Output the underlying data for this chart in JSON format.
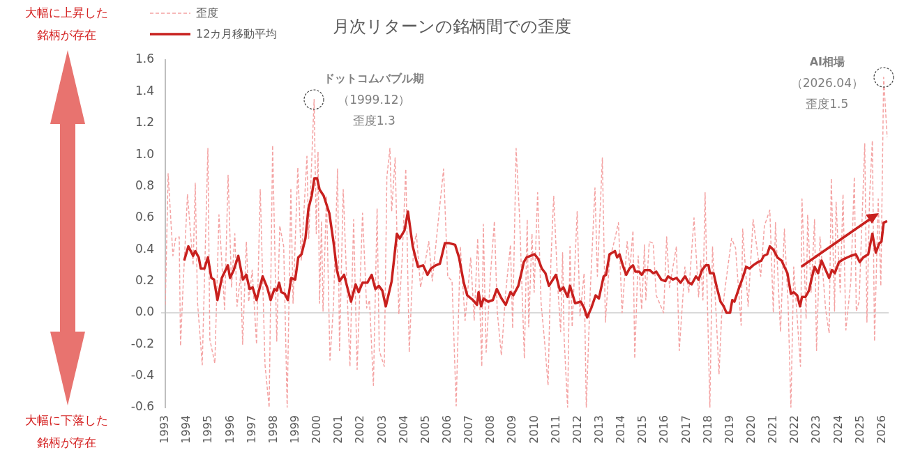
{
  "chart_data": {
    "type": "line",
    "title": "月次リターンの銘柄間での歪度",
    "xlim": [
      1993,
      2026.3
    ],
    "xticks": [
      1993,
      1994,
      1995,
      1996,
      1997,
      1998,
      1999,
      2000,
      2001,
      2002,
      2003,
      2004,
      2005,
      2006,
      2007,
      2008,
      2009,
      2010,
      2011,
      2012,
      2013,
      2014,
      2015,
      2016,
      2017,
      2018,
      2019,
      2020,
      2021,
      2022,
      2023,
      2024,
      2025,
      2026
    ],
    "ylim": [
      -0.6,
      1.6
    ],
    "yticks": [
      {
        "value": -0.6,
        "label": "-0.6"
      },
      {
        "value": -0.4,
        "label": "-0.4"
      },
      {
        "value": -0.2,
        "label": "-0.2"
      },
      {
        "value": 0,
        "label": "0.0"
      },
      0.2,
      0.4,
      0.6,
      0.8,
      {
        "value": 1,
        "label": "1.0"
      },
      1.2,
      1.4,
      1.6
    ],
    "legend": "top left",
    "marker": "none",
    "series": [
      {
        "name": "歪度",
        "color": "#f4a3a3",
        "line_style": "dashed",
        "x": [
          1993.0,
          1993.13,
          1993.35,
          1993.47,
          1993.64,
          1993.7,
          1993.8,
          1994.02,
          1994.28,
          1994.38,
          1994.48,
          1994.7,
          1994.96,
          1995.05,
          1995.28,
          1995.47,
          1995.73,
          1995.89,
          1996.05,
          1996.2,
          1996.3,
          1996.47,
          1996.56,
          1996.73,
          1996.84,
          1997.0,
          1997.2,
          1997.37,
          1997.59,
          1997.78,
          1997.94,
          1998.13,
          1998.27,
          1998.45,
          1998.61,
          1998.78,
          1998.88,
          1999.1,
          1999.26,
          1999.52,
          1999.6,
          1999.85,
          1999.95,
          2000.03,
          2000.1,
          2000.19,
          2000.26,
          2000.42,
          2000.58,
          2000.74,
          2000.93,
          2001.02,
          2001.19,
          2001.5,
          2001.67,
          2001.83,
          2002.08,
          2002.27,
          2002.4,
          2002.58,
          2002.75,
          2002.85,
          2003.08,
          2003.2,
          2003.34,
          2003.42,
          2003.58,
          2003.75,
          2003.9,
          2004.07,
          2004.23,
          2004.43,
          2004.56,
          2004.75,
          2005.13,
          2005.29,
          2005.52,
          2005.81,
          2006.0,
          2006.2,
          2006.39,
          2006.58,
          2006.8,
          2007.06,
          2007.22,
          2007.38,
          2007.57,
          2007.64,
          2007.77,
          2007.96,
          2008.15,
          2008.28,
          2008.47,
          2008.67,
          2008.89,
          2008.99,
          2009.15,
          2009.31,
          2009.53,
          2009.66,
          2009.73,
          2009.88,
          2009.98,
          2010.14,
          2010.3,
          2010.46,
          2010.62,
          2010.75,
          2010.88,
          2011.07,
          2011.2,
          2011.29,
          2011.36,
          2011.52,
          2011.63,
          2011.73,
          2011.96,
          2012.09,
          2012.28,
          2012.38,
          2012.57,
          2012.78,
          2012.89,
          2013.12,
          2013.26,
          2013.45,
          2013.7,
          2013.86,
          2014.03,
          2014.26,
          2014.39,
          2014.53,
          2014.61,
          2014.77,
          2014.93,
          2015.06,
          2015.12,
          2015.28,
          2015.46,
          2015.6,
          2015.94,
          2016.08,
          2016.21,
          2016.53,
          2016.66,
          2016.92,
          2017.1,
          2017.34,
          2017.55,
          2017.65,
          2017.75,
          2017.85,
          2017.94,
          2018.07,
          2018.19,
          2018.35,
          2018.49,
          2018.61,
          2018.83,
          2019.07,
          2019.25,
          2019.51,
          2019.58,
          2019.83,
          2020.06,
          2020.41,
          2020.58,
          2020.83,
          2020.99,
          2021.09,
          2021.32,
          2021.5,
          2021.67,
          2021.8,
          2021.93,
          2022.24,
          2022.31,
          2022.5,
          2022.57,
          2022.73,
          2022.89,
          2022.98,
          2023.14,
          2023.4,
          2023.56,
          2023.66,
          2023.81,
          2023.88,
          2024.07,
          2024.2,
          2024.33,
          2024.56,
          2024.72,
          2024.81,
          2024.94,
          2025.2,
          2025.3,
          2025.42,
          2025.55,
          2025.65,
          2025.82,
          2025.94,
          2026.07,
          2026.23
        ],
        "values": [
          0.05,
          0.88,
          0.36,
          0.47,
          0.48,
          -0.21,
          0.11,
          0.75,
          0.3,
          0.82,
          0.07,
          -0.33,
          1.04,
          -0.17,
          -0.32,
          0.62,
          0.02,
          0.87,
          0.16,
          0.5,
          0.04,
          0.24,
          -0.2,
          0.45,
          0.07,
          0.27,
          -0.2,
          0.78,
          -0.33,
          -0.6,
          1.06,
          -0.18,
          0.55,
          0.42,
          -0.6,
          0.79,
          0.06,
          0.92,
          0.33,
          0.99,
          0.47,
          1.35,
          0.5,
          1.02,
          0.06,
          0.58,
          0.01,
          0.74,
          -0.3,
          0.04,
          0.91,
          -0.24,
          0.78,
          -0.34,
          0.59,
          -0.36,
          0.63,
          0.03,
          0.08,
          -0.46,
          0.66,
          -0.24,
          -0.34,
          0.86,
          1.04,
          0.64,
          0.98,
          -0.01,
          0.33,
          0.91,
          -0.25,
          0.42,
          0.5,
          0.16,
          0.45,
          0.2,
          0.52,
          0.91,
          0.23,
          0.2,
          -0.59,
          0.42,
          -0.05,
          0.35,
          -0.05,
          0.47,
          -0.34,
          0.56,
          -0.25,
          0.22,
          0.58,
          0.01,
          -0.27,
          0.13,
          0.43,
          -0.1,
          1.04,
          0.6,
          -0.29,
          0.59,
          -0.09,
          0.5,
          0.13,
          0.76,
          0.06,
          -0.18,
          -0.46,
          0.32,
          0.74,
          0.16,
          -0.12,
          0.38,
          -0.16,
          -0.6,
          0.42,
          -0.09,
          0.64,
          -0.02,
          0.25,
          -0.6,
          0.16,
          0.79,
          0.23,
          0.98,
          -0.06,
          0.33,
          0.47,
          0.57,
          0.0,
          0.45,
          0.28,
          0.52,
          -0.29,
          0.36,
          0.02,
          0.43,
          0.08,
          0.45,
          0.44,
          0.11,
          0.0,
          0.48,
          0.16,
          0.42,
          -0.24,
          0.29,
          0.13,
          0.6,
          0.1,
          0.33,
          0.08,
          0.76,
          0.16,
          -0.6,
          0.42,
          0.01,
          -0.39,
          -0.02,
          0.22,
          0.47,
          0.41,
          -0.08,
          0.53,
          0.04,
          0.59,
          0.23,
          0.55,
          0.65,
          0.0,
          0.57,
          -0.12,
          0.53,
          0.06,
          -0.6,
          0.29,
          -0.34,
          0.72,
          -0.04,
          0.62,
          0.13,
          0.59,
          -0.24,
          0.48,
          0.02,
          -0.13,
          0.85,
          0.01,
          0.7,
          0.13,
          0.75,
          -0.11,
          0.2,
          0.86,
          0.01,
          0.07,
          1.07,
          -0.06,
          0.73,
          1.09,
          -0.18,
          0.72,
          0.17,
          1.49,
          1.11
        ]
      },
      {
        "name": "12カ月移動平均",
        "color": "#c8201e",
        "line_style": "solid",
        "x": [
          1993.87,
          1994.06,
          1994.28,
          1994.38,
          1994.54,
          1994.63,
          1994.8,
          1994.96,
          1995.12,
          1995.24,
          1995.4,
          1995.6,
          1995.88,
          1995.98,
          1996.15,
          1996.36,
          1996.57,
          1996.73,
          1996.88,
          1997.02,
          1997.2,
          1997.48,
          1997.69,
          1997.85,
          1998.02,
          1998.13,
          1998.24,
          1998.34,
          1998.5,
          1998.64,
          1998.8,
          1998.98,
          1999.12,
          1999.27,
          1999.45,
          1999.59,
          1999.74,
          1999.86,
          1999.99,
          2000.1,
          2000.29,
          2000.55,
          2000.74,
          2000.9,
          2001.02,
          2001.23,
          2001.38,
          2001.55,
          2001.76,
          2001.9,
          2002.08,
          2002.3,
          2002.5,
          2002.67,
          2002.83,
          2002.99,
          2003.15,
          2003.42,
          2003.66,
          2003.79,
          2004.01,
          2004.17,
          2004.39,
          2004.63,
          2004.87,
          2005.07,
          2005.23,
          2005.45,
          2005.64,
          2005.87,
          2006.08,
          2006.34,
          2006.52,
          2006.74,
          2006.9,
          2007.16,
          2007.35,
          2007.42,
          2007.54,
          2007.65,
          2007.86,
          2008.08,
          2008.26,
          2008.48,
          2008.67,
          2008.89,
          2009.02,
          2009.25,
          2009.44,
          2009.5,
          2009.63,
          2010.0,
          2010.17,
          2010.33,
          2010.5,
          2010.66,
          2010.98,
          2011.17,
          2011.33,
          2011.52,
          2011.63,
          2011.87,
          2012.13,
          2012.28,
          2012.42,
          2012.61,
          2012.81,
          2012.96,
          2013.18,
          2013.29,
          2013.45,
          2013.7,
          2013.8,
          2013.91,
          2014.06,
          2014.22,
          2014.37,
          2014.53,
          2014.64,
          2014.82,
          2014.93,
          2015.07,
          2015.3,
          2015.46,
          2015.6,
          2015.83,
          2016.02,
          2016.14,
          2016.37,
          2016.53,
          2016.72,
          2016.92,
          2017.1,
          2017.23,
          2017.43,
          2017.55,
          2017.71,
          2017.88,
          2018.01,
          2018.07,
          2018.24,
          2018.39,
          2018.56,
          2018.71,
          2018.83,
          2019.0,
          2019.1,
          2019.2,
          2019.42,
          2019.58,
          2019.74,
          2019.9,
          2020.06,
          2020.28,
          2020.44,
          2020.55,
          2020.71,
          2020.83,
          2020.99,
          2021.18,
          2021.37,
          2021.47,
          2021.64,
          2021.8,
          2021.93,
          2022.09,
          2022.22,
          2022.31,
          2022.47,
          2022.63,
          2022.76,
          2022.89,
          2023.05,
          2023.21,
          2023.37,
          2023.56,
          2023.69,
          2023.82,
          2024.01,
          2024.24,
          2024.4,
          2024.56,
          2024.79,
          2024.97,
          2025.13,
          2025.36,
          2025.55,
          2025.71,
          2025.87,
          2025.97,
          2026.07,
          2026.23
        ],
        "values": [
          0.33,
          0.42,
          0.36,
          0.39,
          0.35,
          0.28,
          0.28,
          0.35,
          0.22,
          0.21,
          0.08,
          0.22,
          0.3,
          0.22,
          0.27,
          0.36,
          0.21,
          0.24,
          0.15,
          0.16,
          0.08,
          0.23,
          0.16,
          0.08,
          0.15,
          0.14,
          0.19,
          0.13,
          0.12,
          0.08,
          0.22,
          0.21,
          0.35,
          0.37,
          0.47,
          0.66,
          0.74,
          0.85,
          0.85,
          0.78,
          0.74,
          0.63,
          0.45,
          0.27,
          0.2,
          0.24,
          0.16,
          0.07,
          0.18,
          0.13,
          0.19,
          0.19,
          0.24,
          0.15,
          0.17,
          0.14,
          0.04,
          0.2,
          0.5,
          0.47,
          0.52,
          0.64,
          0.42,
          0.29,
          0.3,
          0.24,
          0.28,
          0.3,
          0.31,
          0.44,
          0.44,
          0.43,
          0.35,
          0.19,
          0.11,
          0.08,
          0.05,
          0.13,
          0.04,
          0.09,
          0.07,
          0.08,
          0.15,
          0.09,
          0.05,
          0.13,
          0.11,
          0.17,
          0.28,
          0.32,
          0.35,
          0.37,
          0.34,
          0.28,
          0.25,
          0.17,
          0.24,
          0.14,
          0.16,
          0.1,
          0.17,
          0.06,
          0.07,
          0.03,
          -0.03,
          0.03,
          0.11,
          0.09,
          0.23,
          0.24,
          0.37,
          0.39,
          0.35,
          0.37,
          0.3,
          0.24,
          0.28,
          0.3,
          0.26,
          0.26,
          0.24,
          0.27,
          0.27,
          0.25,
          0.26,
          0.21,
          0.2,
          0.23,
          0.21,
          0.22,
          0.19,
          0.23,
          0.19,
          0.18,
          0.23,
          0.21,
          0.27,
          0.3,
          0.3,
          0.25,
          0.25,
          0.16,
          0.07,
          0.04,
          0.0,
          0.0,
          0.08,
          0.07,
          0.16,
          0.22,
          0.29,
          0.28,
          0.3,
          0.32,
          0.33,
          0.36,
          0.37,
          0.42,
          0.4,
          0.35,
          0.33,
          0.3,
          0.25,
          0.12,
          0.13,
          0.11,
          0.04,
          0.1,
          0.1,
          0.14,
          0.22,
          0.29,
          0.25,
          0.33,
          0.28,
          0.22,
          0.27,
          0.25,
          0.32,
          0.34,
          0.35,
          0.36,
          0.37,
          0.32,
          0.35,
          0.37,
          0.5,
          0.38,
          0.44,
          0.45,
          0.57,
          0.58
        ]
      }
    ],
    "annotations": [
      "大幅に上昇した銘柄が存在",
      "大幅に下落した銘柄が存在",
      "ドットコムバブル期",
      {
        "text": "（1999.12）",
        "x": 1999.85,
        "y": 1.35
      },
      "歪度1.3",
      "AI相場",
      {
        "text": "（2026.04）",
        "x": 2026.07,
        "y": 1.49
      },
      "歪度1.5"
    ]
  }
}
